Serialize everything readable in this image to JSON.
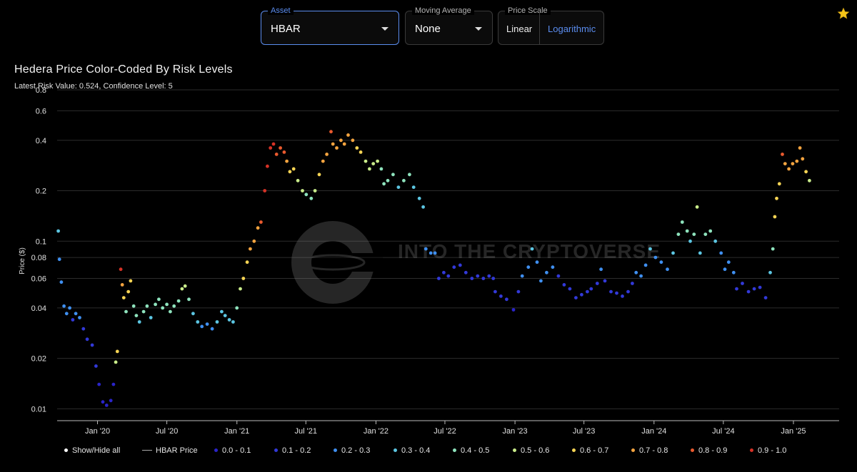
{
  "controls": {
    "asset": {
      "label": "Asset",
      "value": "HBAR"
    },
    "moving_average": {
      "label": "Moving Average",
      "value": "None"
    },
    "price_scale": {
      "label": "Price Scale",
      "options": [
        "Linear",
        "Logarithmic"
      ],
      "selected": "Logarithmic"
    }
  },
  "icons": {
    "favorite": "star-icon",
    "dropdown": "chevron-down-icon"
  },
  "watermark": "INTO THE CRYPTOVERSE",
  "colors": {
    "background": "#000000",
    "accent": "#5b8def",
    "risk": [
      "#2a24c9",
      "#3239d8",
      "#3f8ff0",
      "#5cc6e2",
      "#8ee3bd",
      "#c9ec8a",
      "#f6d454",
      "#f3a33f",
      "#ea5a2e",
      "#d63226",
      "#b01d1d"
    ]
  },
  "chart_data": {
    "type": "scatter",
    "title": "Hedera Price Color-Coded By Risk Levels",
    "subtitle": "Latest Risk Value: 0.524, Confidence Level: 5",
    "xlabel": "",
    "ylabel": "Price ($)",
    "y_scale": "log",
    "ylim": [
      0.0085,
      0.8
    ],
    "y_ticks": [
      0.01,
      0.02,
      0.04,
      0.06,
      0.08,
      0.1,
      0.2,
      0.4,
      0.6,
      0.8
    ],
    "y_tick_labels": [
      "0.01",
      "0.02",
      "0.04",
      "0.06",
      "0.08",
      "0.1",
      "0.2",
      "0.4",
      "0.6",
      "0.8"
    ],
    "xlim": [
      "2019-09-17",
      "2025-05-01"
    ],
    "x_ticks": [
      "2020-01-01",
      "2020-07-01",
      "2021-01-01",
      "2021-07-01",
      "2022-01-01",
      "2022-07-01",
      "2023-01-01",
      "2023-07-01",
      "2024-01-01",
      "2024-07-01",
      "2025-01-01"
    ],
    "x_tick_labels": [
      "Jan '20",
      "Jul '20",
      "Jan '21",
      "Jul '21",
      "Jan '22",
      "Jul '22",
      "Jan '23",
      "Jul '23",
      "Jan '24",
      "Jul '24",
      "Jan '25"
    ],
    "grid": {
      "horizontal": true,
      "vertical": false
    },
    "legend_position": "bottom",
    "legend": {
      "show_hide_all": "Show/Hide all",
      "price_line": "HBAR Price",
      "bands": [
        "0.0 - 0.1",
        "0.1 - 0.2",
        "0.2 - 0.3",
        "0.3 - 0.4",
        "0.4 - 0.5",
        "0.5 - 0.6",
        "0.6 - 0.7",
        "0.7 - 0.8",
        "0.8 - 0.9",
        "0.9 - 1.0"
      ]
    },
    "points": [
      {
        "x": "2019-09-20",
        "y": 0.115,
        "risk": 0.25
      },
      {
        "x": "2019-09-23",
        "y": 0.078,
        "risk": 0.22
      },
      {
        "x": "2019-09-28",
        "y": 0.057,
        "risk": 0.18
      },
      {
        "x": "2019-10-05",
        "y": 0.041,
        "risk": 0.16
      },
      {
        "x": "2019-10-12",
        "y": 0.037,
        "risk": 0.15
      },
      {
        "x": "2019-10-20",
        "y": 0.04,
        "risk": 0.18
      },
      {
        "x": "2019-10-28",
        "y": 0.034,
        "risk": 0.14
      },
      {
        "x": "2019-11-05",
        "y": 0.037,
        "risk": 0.16
      },
      {
        "x": "2019-11-15",
        "y": 0.035,
        "risk": 0.15
      },
      {
        "x": "2019-11-25",
        "y": 0.03,
        "risk": 0.12
      },
      {
        "x": "2019-12-05",
        "y": 0.026,
        "risk": 0.1
      },
      {
        "x": "2019-12-18",
        "y": 0.024,
        "risk": 0.09
      },
      {
        "x": "2019-12-28",
        "y": 0.018,
        "risk": 0.05
      },
      {
        "x": "2020-01-05",
        "y": 0.014,
        "risk": 0.03
      },
      {
        "x": "2020-01-15",
        "y": 0.011,
        "risk": 0.01
      },
      {
        "x": "2020-01-25",
        "y": 0.0105,
        "risk": 0.01
      },
      {
        "x": "2020-02-05",
        "y": 0.0112,
        "risk": 0.01
      },
      {
        "x": "2020-02-12",
        "y": 0.014,
        "risk": 0.03
      },
      {
        "x": "2020-02-18",
        "y": 0.019,
        "risk": 0.45
      },
      {
        "x": "2020-02-22",
        "y": 0.022,
        "risk": 0.55
      },
      {
        "x": "2020-03-02",
        "y": 0.068,
        "risk": 0.85
      },
      {
        "x": "2020-03-06",
        "y": 0.055,
        "risk": 0.68
      },
      {
        "x": "2020-03-10",
        "y": 0.046,
        "risk": 0.58
      },
      {
        "x": "2020-03-16",
        "y": 0.038,
        "risk": 0.4
      },
      {
        "x": "2020-03-22",
        "y": 0.05,
        "risk": 0.55
      },
      {
        "x": "2020-03-28",
        "y": 0.058,
        "risk": 0.6
      },
      {
        "x": "2020-04-05",
        "y": 0.041,
        "risk": 0.4
      },
      {
        "x": "2020-04-12",
        "y": 0.036,
        "risk": 0.35
      },
      {
        "x": "2020-04-20",
        "y": 0.033,
        "risk": 0.32
      },
      {
        "x": "2020-05-01",
        "y": 0.038,
        "risk": 0.36
      },
      {
        "x": "2020-05-10",
        "y": 0.041,
        "risk": 0.38
      },
      {
        "x": "2020-05-20",
        "y": 0.035,
        "risk": 0.33
      },
      {
        "x": "2020-06-01",
        "y": 0.042,
        "risk": 0.4
      },
      {
        "x": "2020-06-10",
        "y": 0.045,
        "risk": 0.42
      },
      {
        "x": "2020-06-20",
        "y": 0.04,
        "risk": 0.38
      },
      {
        "x": "2020-07-01",
        "y": 0.042,
        "risk": 0.39
      },
      {
        "x": "2020-07-10",
        "y": 0.038,
        "risk": 0.36
      },
      {
        "x": "2020-07-20",
        "y": 0.041,
        "risk": 0.38
      },
      {
        "x": "2020-08-01",
        "y": 0.044,
        "risk": 0.42
      },
      {
        "x": "2020-08-10",
        "y": 0.052,
        "risk": 0.48
      },
      {
        "x": "2020-08-18",
        "y": 0.054,
        "risk": 0.5
      },
      {
        "x": "2020-08-28",
        "y": 0.045,
        "risk": 0.43
      },
      {
        "x": "2020-09-08",
        "y": 0.037,
        "risk": 0.3
      },
      {
        "x": "2020-09-20",
        "y": 0.033,
        "risk": 0.26
      },
      {
        "x": "2020-10-01",
        "y": 0.031,
        "risk": 0.23
      },
      {
        "x": "2020-10-15",
        "y": 0.032,
        "risk": 0.24
      },
      {
        "x": "2020-10-28",
        "y": 0.03,
        "risk": 0.22
      },
      {
        "x": "2020-11-10",
        "y": 0.033,
        "risk": 0.25
      },
      {
        "x": "2020-11-22",
        "y": 0.038,
        "risk": 0.32
      },
      {
        "x": "2020-12-01",
        "y": 0.036,
        "risk": 0.3
      },
      {
        "x": "2020-12-12",
        "y": 0.034,
        "risk": 0.28
      },
      {
        "x": "2020-12-22",
        "y": 0.033,
        "risk": 0.27
      },
      {
        "x": "2021-01-01",
        "y": 0.04,
        "risk": 0.38
      },
      {
        "x": "2021-01-10",
        "y": 0.052,
        "risk": 0.48
      },
      {
        "x": "2021-01-18",
        "y": 0.06,
        "risk": 0.55
      },
      {
        "x": "2021-01-28",
        "y": 0.075,
        "risk": 0.62
      },
      {
        "x": "2021-02-05",
        "y": 0.09,
        "risk": 0.66
      },
      {
        "x": "2021-02-15",
        "y": 0.1,
        "risk": 0.68
      },
      {
        "x": "2021-02-25",
        "y": 0.12,
        "risk": 0.72
      },
      {
        "x": "2021-03-05",
        "y": 0.13,
        "risk": 0.78
      },
      {
        "x": "2021-03-15",
        "y": 0.2,
        "risk": 0.85
      },
      {
        "x": "2021-03-22",
        "y": 0.28,
        "risk": 0.88
      },
      {
        "x": "2021-03-30",
        "y": 0.36,
        "risk": 0.88
      },
      {
        "x": "2021-04-07",
        "y": 0.38,
        "risk": 0.86
      },
      {
        "x": "2021-04-15",
        "y": 0.33,
        "risk": 0.84
      },
      {
        "x": "2021-04-25",
        "y": 0.36,
        "risk": 0.82
      },
      {
        "x": "2021-05-05",
        "y": 0.34,
        "risk": 0.78
      },
      {
        "x": "2021-05-12",
        "y": 0.3,
        "risk": 0.72
      },
      {
        "x": "2021-05-20",
        "y": 0.26,
        "risk": 0.6
      },
      {
        "x": "2021-05-30",
        "y": 0.27,
        "risk": 0.58
      },
      {
        "x": "2021-06-10",
        "y": 0.23,
        "risk": 0.5
      },
      {
        "x": "2021-06-22",
        "y": 0.2,
        "risk": 0.45
      },
      {
        "x": "2021-07-02",
        "y": 0.19,
        "risk": 0.42
      },
      {
        "x": "2021-07-15",
        "y": 0.18,
        "risk": 0.4
      },
      {
        "x": "2021-07-25",
        "y": 0.2,
        "risk": 0.45
      },
      {
        "x": "2021-08-05",
        "y": 0.25,
        "risk": 0.58
      },
      {
        "x": "2021-08-15",
        "y": 0.3,
        "risk": 0.65
      },
      {
        "x": "2021-08-25",
        "y": 0.33,
        "risk": 0.68
      },
      {
        "x": "2021-09-05",
        "y": 0.45,
        "risk": 0.78
      },
      {
        "x": "2021-09-10",
        "y": 0.38,
        "risk": 0.72
      },
      {
        "x": "2021-09-20",
        "y": 0.36,
        "risk": 0.68
      },
      {
        "x": "2021-10-01",
        "y": 0.4,
        "risk": 0.7
      },
      {
        "x": "2021-10-10",
        "y": 0.38,
        "risk": 0.68
      },
      {
        "x": "2021-10-20",
        "y": 0.43,
        "risk": 0.72
      },
      {
        "x": "2021-11-01",
        "y": 0.4,
        "risk": 0.66
      },
      {
        "x": "2021-11-12",
        "y": 0.36,
        "risk": 0.62
      },
      {
        "x": "2021-11-22",
        "y": 0.34,
        "risk": 0.58
      },
      {
        "x": "2021-12-05",
        "y": 0.3,
        "risk": 0.52
      },
      {
        "x": "2021-12-15",
        "y": 0.27,
        "risk": 0.46
      },
      {
        "x": "2021-12-25",
        "y": 0.29,
        "risk": 0.48
      },
      {
        "x": "2022-01-05",
        "y": 0.3,
        "risk": 0.48
      },
      {
        "x": "2022-01-15",
        "y": 0.27,
        "risk": 0.44
      },
      {
        "x": "2022-01-22",
        "y": 0.22,
        "risk": 0.36
      },
      {
        "x": "2022-02-01",
        "y": 0.23,
        "risk": 0.36
      },
      {
        "x": "2022-02-15",
        "y": 0.25,
        "risk": 0.38
      },
      {
        "x": "2022-03-01",
        "y": 0.21,
        "risk": 0.34
      },
      {
        "x": "2022-03-15",
        "y": 0.23,
        "risk": 0.36
      },
      {
        "x": "2022-03-30",
        "y": 0.25,
        "risk": 0.38
      },
      {
        "x": "2022-04-10",
        "y": 0.21,
        "risk": 0.33
      },
      {
        "x": "2022-04-25",
        "y": 0.18,
        "risk": 0.28
      },
      {
        "x": "2022-05-05",
        "y": 0.16,
        "risk": 0.25
      },
      {
        "x": "2022-05-12",
        "y": 0.09,
        "risk": 0.18
      },
      {
        "x": "2022-05-25",
        "y": 0.085,
        "risk": 0.18
      },
      {
        "x": "2022-06-05",
        "y": 0.085,
        "risk": 0.17
      },
      {
        "x": "2022-06-15",
        "y": 0.06,
        "risk": 0.12
      },
      {
        "x": "2022-06-28",
        "y": 0.065,
        "risk": 0.13
      },
      {
        "x": "2022-07-10",
        "y": 0.062,
        "risk": 0.12
      },
      {
        "x": "2022-07-25",
        "y": 0.07,
        "risk": 0.14
      },
      {
        "x": "2022-08-10",
        "y": 0.072,
        "risk": 0.14
      },
      {
        "x": "2022-08-25",
        "y": 0.065,
        "risk": 0.13
      },
      {
        "x": "2022-09-10",
        "y": 0.06,
        "risk": 0.12
      },
      {
        "x": "2022-09-25",
        "y": 0.062,
        "risk": 0.12
      },
      {
        "x": "2022-10-10",
        "y": 0.06,
        "risk": 0.12
      },
      {
        "x": "2022-10-25",
        "y": 0.062,
        "risk": 0.12
      },
      {
        "x": "2022-11-05",
        "y": 0.06,
        "risk": 0.12
      },
      {
        "x": "2022-11-10",
        "y": 0.05,
        "risk": 0.08
      },
      {
        "x": "2022-11-25",
        "y": 0.047,
        "risk": 0.07
      },
      {
        "x": "2022-12-10",
        "y": 0.045,
        "risk": 0.06
      },
      {
        "x": "2022-12-28",
        "y": 0.039,
        "risk": 0.04
      },
      {
        "x": "2023-01-10",
        "y": 0.05,
        "risk": 0.1
      },
      {
        "x": "2023-01-20",
        "y": 0.062,
        "risk": 0.16
      },
      {
        "x": "2023-02-05",
        "y": 0.07,
        "risk": 0.2
      },
      {
        "x": "2023-02-15",
        "y": 0.09,
        "risk": 0.28
      },
      {
        "x": "2023-02-28",
        "y": 0.075,
        "risk": 0.22
      },
      {
        "x": "2023-03-10",
        "y": 0.058,
        "risk": 0.15
      },
      {
        "x": "2023-03-25",
        "y": 0.065,
        "risk": 0.16
      },
      {
        "x": "2023-04-10",
        "y": 0.07,
        "risk": 0.17
      },
      {
        "x": "2023-04-25",
        "y": 0.062,
        "risk": 0.14
      },
      {
        "x": "2023-05-10",
        "y": 0.055,
        "risk": 0.12
      },
      {
        "x": "2023-05-25",
        "y": 0.052,
        "risk": 0.1
      },
      {
        "x": "2023-06-10",
        "y": 0.046,
        "risk": 0.08
      },
      {
        "x": "2023-06-25",
        "y": 0.048,
        "risk": 0.09
      },
      {
        "x": "2023-07-10",
        "y": 0.05,
        "risk": 0.1
      },
      {
        "x": "2023-07-20",
        "y": 0.052,
        "risk": 0.11
      },
      {
        "x": "2023-08-05",
        "y": 0.056,
        "risk": 0.12
      },
      {
        "x": "2023-08-15",
        "y": 0.068,
        "risk": 0.15
      },
      {
        "x": "2023-08-25",
        "y": 0.058,
        "risk": 0.12
      },
      {
        "x": "2023-09-10",
        "y": 0.05,
        "risk": 0.1
      },
      {
        "x": "2023-09-25",
        "y": 0.049,
        "risk": 0.09
      },
      {
        "x": "2023-10-10",
        "y": 0.047,
        "risk": 0.08
      },
      {
        "x": "2023-10-25",
        "y": 0.05,
        "risk": 0.1
      },
      {
        "x": "2023-11-05",
        "y": 0.056,
        "risk": 0.12
      },
      {
        "x": "2023-11-15",
        "y": 0.065,
        "risk": 0.16
      },
      {
        "x": "2023-11-28",
        "y": 0.062,
        "risk": 0.15
      },
      {
        "x": "2023-12-10",
        "y": 0.072,
        "risk": 0.2
      },
      {
        "x": "2023-12-22",
        "y": 0.09,
        "risk": 0.28
      },
      {
        "x": "2024-01-05",
        "y": 0.08,
        "risk": 0.24
      },
      {
        "x": "2024-01-20",
        "y": 0.075,
        "risk": 0.21
      },
      {
        "x": "2024-02-05",
        "y": 0.068,
        "risk": 0.18
      },
      {
        "x": "2024-02-20",
        "y": 0.085,
        "risk": 0.26
      },
      {
        "x": "2024-03-05",
        "y": 0.11,
        "risk": 0.35
      },
      {
        "x": "2024-03-15",
        "y": 0.13,
        "risk": 0.42
      },
      {
        "x": "2024-03-28",
        "y": 0.115,
        "risk": 0.38
      },
      {
        "x": "2024-04-05",
        "y": 0.1,
        "risk": 0.33
      },
      {
        "x": "2024-04-15",
        "y": 0.11,
        "risk": 0.36
      },
      {
        "x": "2024-04-23",
        "y": 0.16,
        "risk": 0.5
      },
      {
        "x": "2024-05-01",
        "y": 0.085,
        "risk": 0.26
      },
      {
        "x": "2024-05-15",
        "y": 0.11,
        "risk": 0.35
      },
      {
        "x": "2024-05-28",
        "y": 0.115,
        "risk": 0.36
      },
      {
        "x": "2024-06-10",
        "y": 0.1,
        "risk": 0.3
      },
      {
        "x": "2024-06-25",
        "y": 0.085,
        "risk": 0.24
      },
      {
        "x": "2024-07-05",
        "y": 0.068,
        "risk": 0.18
      },
      {
        "x": "2024-07-15",
        "y": 0.075,
        "risk": 0.2
      },
      {
        "x": "2024-07-28",
        "y": 0.065,
        "risk": 0.16
      },
      {
        "x": "2024-08-05",
        "y": 0.052,
        "risk": 0.11
      },
      {
        "x": "2024-08-20",
        "y": 0.056,
        "risk": 0.12
      },
      {
        "x": "2024-09-05",
        "y": 0.05,
        "risk": 0.1
      },
      {
        "x": "2024-09-20",
        "y": 0.052,
        "risk": 0.11
      },
      {
        "x": "2024-10-05",
        "y": 0.053,
        "risk": 0.11
      },
      {
        "x": "2024-10-20",
        "y": 0.046,
        "risk": 0.08
      },
      {
        "x": "2024-11-01",
        "y": 0.065,
        "risk": 0.3
      },
      {
        "x": "2024-11-08",
        "y": 0.09,
        "risk": 0.42
      },
      {
        "x": "2024-11-13",
        "y": 0.14,
        "risk": 0.55
      },
      {
        "x": "2024-11-18",
        "y": 0.18,
        "risk": 0.6
      },
      {
        "x": "2024-11-25",
        "y": 0.22,
        "risk": 0.64
      },
      {
        "x": "2024-12-03",
        "y": 0.33,
        "risk": 0.75
      },
      {
        "x": "2024-12-10",
        "y": 0.29,
        "risk": 0.7
      },
      {
        "x": "2024-12-20",
        "y": 0.27,
        "risk": 0.66
      },
      {
        "x": "2024-12-30",
        "y": 0.29,
        "risk": 0.68
      },
      {
        "x": "2025-01-10",
        "y": 0.3,
        "risk": 0.68
      },
      {
        "x": "2025-01-18",
        "y": 0.36,
        "risk": 0.74
      },
      {
        "x": "2025-01-25",
        "y": 0.31,
        "risk": 0.66
      },
      {
        "x": "2025-02-03",
        "y": 0.26,
        "risk": 0.58
      },
      {
        "x": "2025-02-12",
        "y": 0.23,
        "risk": 0.52
      }
    ]
  }
}
